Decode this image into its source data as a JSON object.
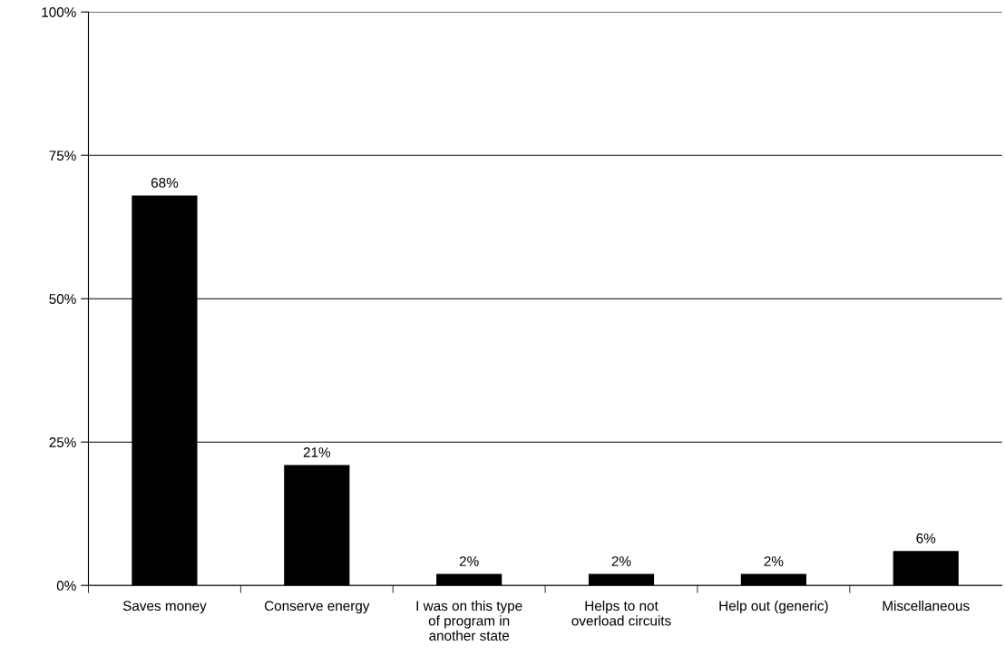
{
  "chart_data": {
    "type": "bar",
    "categories": [
      "Saves money",
      "Conserve energy",
      "I was on this type\nof program in\nanother state",
      "Helps to not\noverload circuits",
      "Help out (generic)",
      "Miscellaneous"
    ],
    "values": [
      68,
      21,
      2,
      2,
      2,
      6
    ],
    "value_labels": [
      "68%",
      "21%",
      "2%",
      "2%",
      "2%",
      "6%"
    ],
    "color": "#000000",
    "ylim": [
      0,
      100
    ],
    "yticks": [
      {
        "value": 0,
        "label": "0%"
      },
      {
        "value": 25,
        "label": "25%"
      },
      {
        "value": 50,
        "label": "50%"
      },
      {
        "value": 75,
        "label": "75%"
      },
      {
        "value": 100,
        "label": "100%"
      }
    ],
    "grid": "y",
    "legend": false
  }
}
